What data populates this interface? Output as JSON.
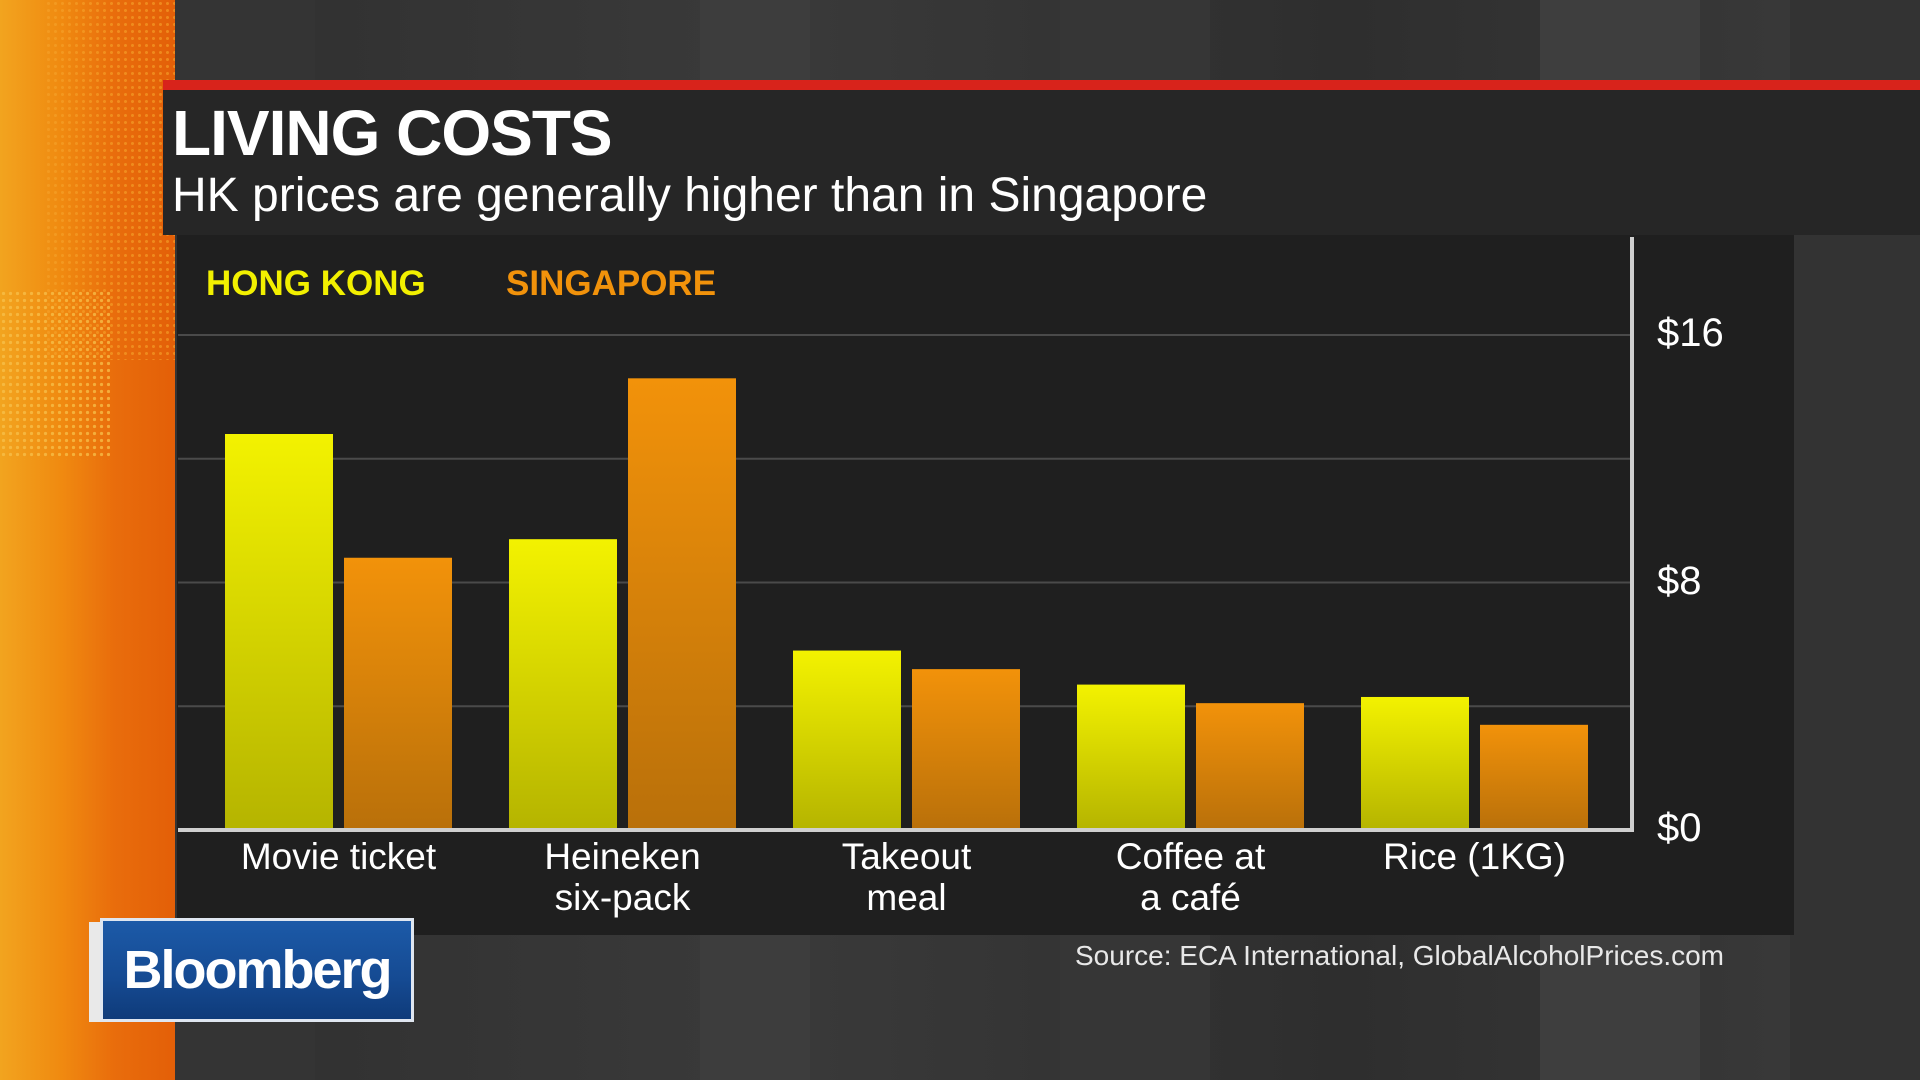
{
  "header": {
    "title": "LIVING COSTS",
    "subtitle": "HK prices are generally higher than in Singapore"
  },
  "source": "Source: ECA International, GlobalAlcoholPrices.com",
  "brand": "Bloomberg",
  "colors": {
    "hong_kong": "#f0ee00",
    "singapore": "#f0900a",
    "accent_red": "#d8231b"
  },
  "chart_data": {
    "type": "bar",
    "title": "LIVING COSTS",
    "subtitle": "HK prices are generally higher than in Singapore",
    "categories": [
      "Movie ticket",
      "Heineken six-pack",
      "Takeout meal",
      "Coffee at a café",
      "Rice (1KG)"
    ],
    "category_lines": [
      [
        "Movie ticket"
      ],
      [
        "Heineken",
        "six-pack"
      ],
      [
        "Takeout",
        "meal"
      ],
      [
        "Coffee at",
        "a café"
      ],
      [
        "Rice (1KG)"
      ]
    ],
    "series": [
      {
        "name": "HONG KONG",
        "values": [
          12.8,
          9.4,
          5.8,
          4.7,
          4.3
        ]
      },
      {
        "name": "SINGAPORE",
        "values": [
          8.8,
          14.6,
          5.2,
          4.1,
          3.4
        ]
      }
    ],
    "ylim": [
      0,
      16
    ],
    "yticks": [
      0,
      8,
      16
    ],
    "ytick_labels": [
      "$0",
      "$8",
      "$16"
    ],
    "gridlines": [
      4,
      8,
      12,
      16
    ],
    "legend_position": "top-left",
    "axis_position": "right",
    "xlabel": "",
    "ylabel": ""
  }
}
